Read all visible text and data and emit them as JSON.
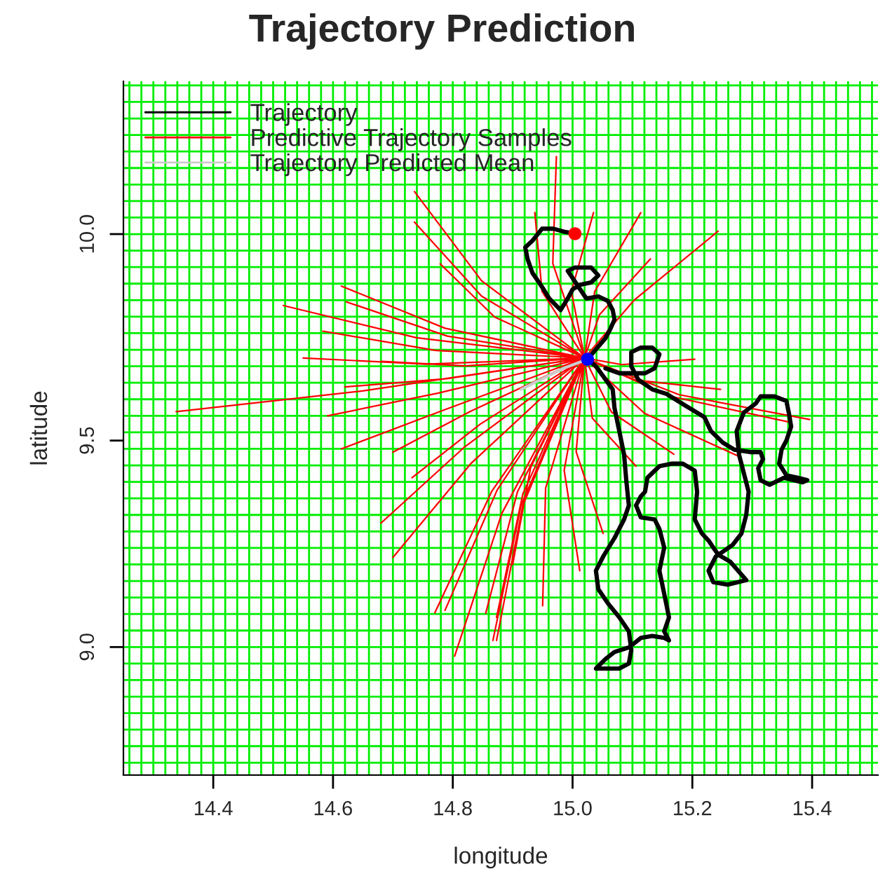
{
  "chart_data": {
    "type": "line",
    "title": "Trajectory Prediction",
    "xlabel": "longitude",
    "ylabel": "latitude",
    "xlim": [
      14.25,
      15.51
    ],
    "ylim": [
      8.69,
      10.37
    ],
    "xticks": [
      {
        "value": 14.4,
        "label": "14.4"
      },
      {
        "value": 14.6,
        "label": "14.6"
      },
      {
        "value": 14.8,
        "label": "14.8"
      },
      {
        "value": 15.0,
        "label": "15.0"
      },
      {
        "value": 15.2,
        "label": "15.2"
      },
      {
        "value": 15.4,
        "label": "15.4"
      }
    ],
    "yticks": [
      {
        "value": 9.0,
        "label": "9.0"
      },
      {
        "value": 9.5,
        "label": "9.5"
      },
      {
        "value": 10.0,
        "label": "10.0"
      }
    ],
    "grid": false,
    "legend": "top left",
    "marker": "none",
    "line_style": "solid",
    "series": [
      {
        "name": "Trajectory",
        "color": "#000000",
        "x": [
          15.004,
          14.988,
          14.968,
          14.949,
          14.933,
          14.921,
          14.925,
          14.933,
          14.949,
          14.961,
          14.98,
          14.992,
          15.0,
          15.012,
          15.031,
          15.043,
          15.031,
          15.004,
          14.992,
          15.023,
          15.043,
          15.059,
          15.067,
          15.07,
          15.063,
          15.055,
          15.035,
          15.025,
          15.039,
          15.067,
          15.07,
          15.078,
          15.086,
          15.09,
          15.094,
          15.086,
          15.07,
          15.051,
          15.039,
          15.043,
          15.059,
          15.078,
          15.094,
          15.098,
          15.094,
          15.078,
          15.039,
          15.055,
          15.07,
          15.094,
          15.114,
          15.133,
          15.153,
          15.161,
          15.153,
          15.161,
          15.153,
          15.145,
          15.153,
          15.145,
          15.137,
          15.114,
          15.106,
          15.114,
          15.121,
          15.125,
          15.145,
          15.165,
          15.184,
          15.204,
          15.208,
          15.204,
          15.216,
          15.227,
          15.243,
          15.263,
          15.29,
          15.259,
          15.235,
          15.227,
          15.239,
          15.267,
          15.282,
          15.29,
          15.294,
          15.286,
          15.278,
          15.274,
          15.286,
          15.306,
          15.314,
          15.337,
          15.357,
          15.361,
          15.365,
          15.357,
          15.349,
          15.345,
          15.357,
          15.376,
          15.392,
          15.384,
          15.353,
          15.329,
          15.314,
          15.31,
          15.318,
          15.314,
          15.298,
          15.27,
          15.251,
          15.231,
          15.22,
          15.188,
          15.157,
          15.133,
          15.11,
          15.098,
          15.098,
          15.114,
          15.133,
          15.145,
          15.137,
          15.121,
          15.102,
          15.078,
          15.055
        ],
        "values": [
          10.001,
          10.005,
          10.013,
          10.013,
          9.984,
          9.968,
          9.939,
          9.906,
          9.872,
          9.844,
          9.816,
          9.844,
          9.866,
          9.877,
          9.883,
          9.9,
          9.919,
          9.919,
          9.911,
          9.844,
          9.849,
          9.838,
          9.816,
          9.793,
          9.77,
          9.748,
          9.714,
          9.697,
          9.68,
          9.624,
          9.579,
          9.523,
          9.466,
          9.399,
          9.343,
          9.309,
          9.264,
          9.219,
          9.185,
          9.14,
          9.106,
          9.072,
          9.038,
          8.993,
          8.96,
          8.948,
          8.948,
          8.971,
          8.988,
          8.999,
          9.022,
          9.027,
          9.022,
          9.016,
          9.038,
          9.072,
          9.129,
          9.185,
          9.241,
          9.286,
          9.309,
          9.314,
          9.343,
          9.365,
          9.376,
          9.41,
          9.438,
          9.444,
          9.444,
          9.427,
          9.376,
          9.309,
          9.275,
          9.258,
          9.224,
          9.207,
          9.162,
          9.151,
          9.157,
          9.185,
          9.219,
          9.247,
          9.275,
          9.32,
          9.376,
          9.421,
          9.466,
          9.523,
          9.568,
          9.59,
          9.607,
          9.607,
          9.596,
          9.568,
          9.534,
          9.5,
          9.478,
          9.444,
          9.416,
          9.41,
          9.404,
          9.399,
          9.41,
          9.393,
          9.404,
          9.433,
          9.455,
          9.472,
          9.472,
          9.478,
          9.495,
          9.523,
          9.557,
          9.585,
          9.613,
          9.624,
          9.647,
          9.68,
          9.714,
          9.725,
          9.725,
          9.709,
          9.675,
          9.663,
          9.663,
          9.663,
          9.675
        ]
      },
      {
        "name": "Predictive Trajectory Samples",
        "color": "#ff0000",
        "x": [
          15.02,
          14.649,
          14.338,
          null,
          15.02,
          14.739,
          14.517,
          null,
          15.02,
          14.787,
          14.614,
          null,
          15.02,
          14.791,
          14.622,
          null,
          15.02,
          14.772,
          14.583,
          null,
          15.02,
          14.821,
          14.681,
          null,
          15.02,
          14.776,
          14.591,
          null,
          15.02,
          14.787,
          14.614,
          null,
          15.02,
          14.83,
          14.7,
          null,
          15.02,
          14.865,
          14.77,
          null,
          15.02,
          14.874,
          14.787,
          null,
          15.02,
          14.848,
          14.736,
          null,
          15.02,
          14.848,
          14.736,
          null,
          15.02,
          14.882,
          14.803,
          null,
          15.02,
          14.917,
          14.873,
          null,
          15.02,
          14.87,
          14.779,
          null,
          15.02,
          14.83,
          14.7,
          null,
          15.02,
          14.846,
          14.732,
          null,
          15.02,
          14.908,
          14.855,
          null,
          15.02,
          14.967,
          14.973,
          null,
          15.02,
          15.102,
          15.243,
          null,
          15.02,
          15.045,
          15.13,
          null,
          15.02,
          15.037,
          15.114,
          null,
          15.02,
          15.082,
          15.204,
          null,
          15.02,
          15.104,
          15.247,
          null,
          15.02,
          15.178,
          15.396,
          null,
          15.02,
          15.12,
          15.279,
          null,
          15.02,
          15.065,
          15.169,
          null,
          15.02,
          15.033,
          15.106,
          null,
          15.02,
          15.006,
          15.051,
          null,
          15.02,
          14.986,
          15.012,
          null,
          15.02,
          14.998,
          15.035,
          null,
          15.02,
          14.949,
          14.937,
          null,
          15.02,
          14.914,
          14.867,
          null,
          15.02,
          14.917,
          14.873,
          null,
          15.02,
          15.161,
          15.361,
          null,
          15.02,
          14.79,
          14.62,
          null,
          15.02,
          14.755,
          14.55,
          null,
          15.02,
          14.93,
          14.9,
          null,
          15.02,
          14.955,
          14.95,
          null,
          15.02,
          14.82,
          14.68
        ],
        "values": [
          9.7,
          9.62,
          9.57,
          null,
          9.7,
          9.749,
          9.827,
          null,
          9.7,
          9.772,
          9.874,
          null,
          9.7,
          9.753,
          9.836,
          null,
          9.7,
          9.718,
          9.765,
          null,
          9.7,
          9.681,
          9.692,
          null,
          9.7,
          9.615,
          9.56,
          null,
          9.7,
          9.575,
          9.48,
          null,
          9.7,
          9.444,
          9.217,
          null,
          9.7,
          9.377,
          9.083,
          null,
          9.7,
          9.38,
          9.089,
          null,
          9.7,
          9.85,
          10.029,
          null,
          9.7,
          9.887,
          10.103,
          null,
          9.7,
          9.324,
          8.978,
          null,
          9.7,
          9.371,
          9.072,
          null,
          9.7,
          9.799,
          9.928,
          null,
          9.7,
          9.571,
          9.472,
          null,
          9.7,
          9.54,
          9.41,
          null,
          9.7,
          9.376,
          9.082,
          null,
          9.7,
          9.929,
          10.188,
          null,
          9.7,
          9.839,
          10.007,
          null,
          9.7,
          9.805,
          9.94,
          null,
          9.7,
          9.861,
          10.052,
          null,
          9.7,
          9.684,
          9.697,
          null,
          9.7,
          9.647,
          9.624,
          null,
          9.7,
          9.611,
          9.551,
          null,
          9.7,
          9.566,
          9.461,
          null,
          9.7,
          9.569,
          9.467,
          null,
          9.7,
          9.554,
          9.438,
          null,
          9.7,
          9.473,
          9.275,
          null,
          9.7,
          9.428,
          9.185,
          null,
          9.7,
          9.861,
          10.052,
          null,
          9.7,
          9.861,
          10.052,
          null,
          9.7,
          9.343,
          9.016,
          null,
          9.7,
          9.343,
          9.016,
          null,
          9.7,
          9.608,
          9.545,
          null,
          9.7,
          9.65,
          9.63,
          null,
          9.7,
          9.685,
          9.7,
          null,
          9.7,
          9.435,
          9.2,
          null,
          9.7,
          9.385,
          9.1,
          null,
          9.7,
          9.485,
          9.3
        ]
      },
      {
        "name": "Trajectory Predicted Mean",
        "color": "#cccccc",
        "x": [
          15.025,
          14.985,
          14.95,
          14.914
        ],
        "values": [
          9.697,
          9.675,
          9.65,
          9.624
        ]
      },
      {
        "color": "#ff0000",
        "type": "scatter",
        "marker": "circle",
        "x": [
          15.004
        ],
        "values": [
          10.001
        ]
      },
      {
        "color": "#0000ff",
        "type": "scatter",
        "marker": "circle",
        "x": [
          15.025
        ],
        "values": [
          9.697
        ]
      }
    ],
    "ref_lines": [
      {
        "axis": "x",
        "value": 14.26,
        "color": "#00ee00"
      },
      {
        "axis": "x",
        "value": 14.28,
        "color": "#00ee00"
      },
      {
        "axis": "x",
        "value": 14.3,
        "color": "#00ee00"
      },
      {
        "axis": "x",
        "value": 14.32,
        "color": "#00ee00"
      },
      {
        "axis": "x",
        "value": 14.34,
        "color": "#00ee00"
      },
      {
        "axis": "x",
        "value": 14.36,
        "color": "#00ee00"
      },
      {
        "axis": "x",
        "value": 14.38,
        "color": "#00ee00"
      },
      {
        "axis": "x",
        "value": 14.4,
        "color": "#00ee00"
      },
      {
        "axis": "x",
        "value": 14.42,
        "color": "#00ee00"
      },
      {
        "axis": "x",
        "value": 14.44,
        "color": "#00ee00"
      },
      {
        "axis": "x",
        "value": 14.46,
        "color": "#00ee00"
      },
      {
        "axis": "x",
        "value": 14.48,
        "color": "#00ee00"
      },
      {
        "axis": "x",
        "value": 14.5,
        "color": "#00ee00"
      },
      {
        "axis": "x",
        "value": 14.52,
        "color": "#00ee00"
      },
      {
        "axis": "x",
        "value": 14.54,
        "color": "#00ee00"
      },
      {
        "axis": "x",
        "value": 14.56,
        "color": "#00ee00"
      },
      {
        "axis": "x",
        "value": 14.58,
        "color": "#00ee00"
      },
      {
        "axis": "x",
        "value": 14.6,
        "color": "#00ee00"
      },
      {
        "axis": "x",
        "value": 14.62,
        "color": "#00ee00"
      },
      {
        "axis": "x",
        "value": 14.64,
        "color": "#00ee00"
      },
      {
        "axis": "x",
        "value": 14.66,
        "color": "#00ee00"
      },
      {
        "axis": "x",
        "value": 14.68,
        "color": "#00ee00"
      },
      {
        "axis": "x",
        "value": 14.7,
        "color": "#00ee00"
      },
      {
        "axis": "x",
        "value": 14.72,
        "color": "#00ee00"
      },
      {
        "axis": "x",
        "value": 14.74,
        "color": "#00ee00"
      },
      {
        "axis": "x",
        "value": 14.76,
        "color": "#00ee00"
      },
      {
        "axis": "x",
        "value": 14.78,
        "color": "#00ee00"
      },
      {
        "axis": "x",
        "value": 14.8,
        "color": "#00ee00"
      },
      {
        "axis": "x",
        "value": 14.82,
        "color": "#00ee00"
      },
      {
        "axis": "x",
        "value": 14.84,
        "color": "#00ee00"
      },
      {
        "axis": "x",
        "value": 14.86,
        "color": "#00ee00"
      },
      {
        "axis": "x",
        "value": 14.88,
        "color": "#00ee00"
      },
      {
        "axis": "x",
        "value": 14.9,
        "color": "#00ee00"
      },
      {
        "axis": "x",
        "value": 14.92,
        "color": "#00ee00"
      },
      {
        "axis": "x",
        "value": 14.94,
        "color": "#00ee00"
      },
      {
        "axis": "x",
        "value": 14.96,
        "color": "#00ee00"
      },
      {
        "axis": "x",
        "value": 14.98,
        "color": "#00ee00"
      },
      {
        "axis": "x",
        "value": 15.0,
        "color": "#00ee00"
      },
      {
        "axis": "x",
        "value": 15.02,
        "color": "#00ee00"
      },
      {
        "axis": "x",
        "value": 15.04,
        "color": "#00ee00"
      },
      {
        "axis": "x",
        "value": 15.06,
        "color": "#00ee00"
      },
      {
        "axis": "x",
        "value": 15.08,
        "color": "#00ee00"
      },
      {
        "axis": "x",
        "value": 15.1,
        "color": "#00ee00"
      },
      {
        "axis": "x",
        "value": 15.12,
        "color": "#00ee00"
      },
      {
        "axis": "x",
        "value": 15.14,
        "color": "#00ee00"
      },
      {
        "axis": "x",
        "value": 15.16,
        "color": "#00ee00"
      },
      {
        "axis": "x",
        "value": 15.18,
        "color": "#00ee00"
      },
      {
        "axis": "x",
        "value": 15.2,
        "color": "#00ee00"
      },
      {
        "axis": "x",
        "value": 15.22,
        "color": "#00ee00"
      },
      {
        "axis": "x",
        "value": 15.24,
        "color": "#00ee00"
      },
      {
        "axis": "x",
        "value": 15.26,
        "color": "#00ee00"
      },
      {
        "axis": "x",
        "value": 15.28,
        "color": "#00ee00"
      },
      {
        "axis": "x",
        "value": 15.3,
        "color": "#00ee00"
      },
      {
        "axis": "x",
        "value": 15.32,
        "color": "#00ee00"
      },
      {
        "axis": "x",
        "value": 15.34,
        "color": "#00ee00"
      },
      {
        "axis": "x",
        "value": 15.36,
        "color": "#00ee00"
      },
      {
        "axis": "x",
        "value": 15.38,
        "color": "#00ee00"
      },
      {
        "axis": "x",
        "value": 15.4,
        "color": "#00ee00"
      },
      {
        "axis": "x",
        "value": 15.42,
        "color": "#00ee00"
      },
      {
        "axis": "x",
        "value": 15.44,
        "color": "#00ee00"
      },
      {
        "axis": "x",
        "value": 15.46,
        "color": "#00ee00"
      },
      {
        "axis": "x",
        "value": 15.48,
        "color": "#00ee00"
      },
      {
        "axis": "x",
        "value": 15.5,
        "color": "#00ee00"
      },
      {
        "axis": "y",
        "value": 8.72,
        "color": "#00ee00"
      },
      {
        "axis": "y",
        "value": 8.76,
        "color": "#00ee00"
      },
      {
        "axis": "y",
        "value": 8.8,
        "color": "#00ee00"
      },
      {
        "axis": "y",
        "value": 8.84,
        "color": "#00ee00"
      },
      {
        "axis": "y",
        "value": 8.88,
        "color": "#00ee00"
      },
      {
        "axis": "y",
        "value": 8.92,
        "color": "#00ee00"
      },
      {
        "axis": "y",
        "value": 8.96,
        "color": "#00ee00"
      },
      {
        "axis": "y",
        "value": 9.0,
        "color": "#00ee00"
      },
      {
        "axis": "y",
        "value": 9.04,
        "color": "#00ee00"
      },
      {
        "axis": "y",
        "value": 9.08,
        "color": "#00ee00"
      },
      {
        "axis": "y",
        "value": 9.12,
        "color": "#00ee00"
      },
      {
        "axis": "y",
        "value": 9.16,
        "color": "#00ee00"
      },
      {
        "axis": "y",
        "value": 9.2,
        "color": "#00ee00"
      },
      {
        "axis": "y",
        "value": 9.24,
        "color": "#00ee00"
      },
      {
        "axis": "y",
        "value": 9.28,
        "color": "#00ee00"
      },
      {
        "axis": "y",
        "value": 9.32,
        "color": "#00ee00"
      },
      {
        "axis": "y",
        "value": 9.36,
        "color": "#00ee00"
      },
      {
        "axis": "y",
        "value": 9.4,
        "color": "#00ee00"
      },
      {
        "axis": "y",
        "value": 9.44,
        "color": "#00ee00"
      },
      {
        "axis": "y",
        "value": 9.48,
        "color": "#00ee00"
      },
      {
        "axis": "y",
        "value": 9.52,
        "color": "#00ee00"
      },
      {
        "axis": "y",
        "value": 9.56,
        "color": "#00ee00"
      },
      {
        "axis": "y",
        "value": 9.6,
        "color": "#00ee00"
      },
      {
        "axis": "y",
        "value": 9.64,
        "color": "#00ee00"
      },
      {
        "axis": "y",
        "value": 9.68,
        "color": "#00ee00"
      },
      {
        "axis": "y",
        "value": 9.72,
        "color": "#00ee00"
      },
      {
        "axis": "y",
        "value": 9.76,
        "color": "#00ee00"
      },
      {
        "axis": "y",
        "value": 9.8,
        "color": "#00ee00"
      },
      {
        "axis": "y",
        "value": 9.84,
        "color": "#00ee00"
      },
      {
        "axis": "y",
        "value": 9.88,
        "color": "#00ee00"
      },
      {
        "axis": "y",
        "value": 9.92,
        "color": "#00ee00"
      },
      {
        "axis": "y",
        "value": 9.96,
        "color": "#00ee00"
      },
      {
        "axis": "y",
        "value": 10.0,
        "color": "#00ee00"
      },
      {
        "axis": "y",
        "value": 10.04,
        "color": "#00ee00"
      },
      {
        "axis": "y",
        "value": 10.08,
        "color": "#00ee00"
      },
      {
        "axis": "y",
        "value": 10.12,
        "color": "#00ee00"
      },
      {
        "axis": "y",
        "value": 10.16,
        "color": "#00ee00"
      },
      {
        "axis": "y",
        "value": 10.2,
        "color": "#00ee00"
      },
      {
        "axis": "y",
        "value": 10.24,
        "color": "#00ee00"
      },
      {
        "axis": "y",
        "value": 10.28,
        "color": "#00ee00"
      },
      {
        "axis": "y",
        "value": 10.32,
        "color": "#00ee00"
      },
      {
        "axis": "y",
        "value": 10.36,
        "color": "#00ee00"
      }
    ]
  }
}
